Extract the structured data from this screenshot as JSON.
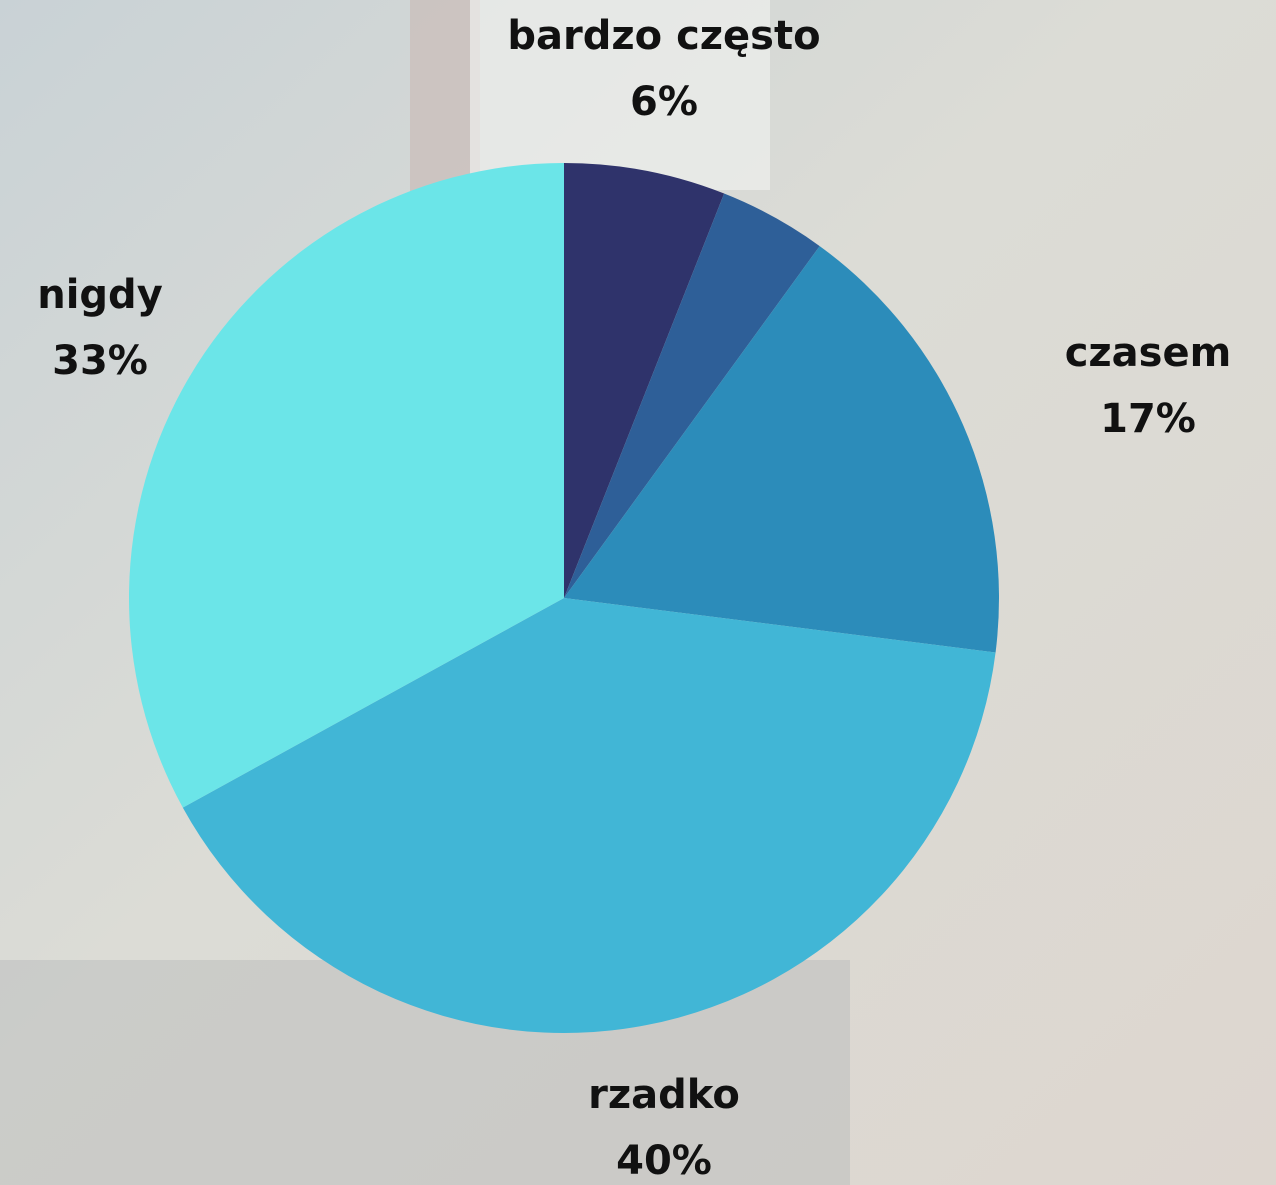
{
  "chart_data": {
    "type": "pie",
    "categories": [
      "bardzo często",
      null,
      "czasem",
      "rzadko",
      "nigdy"
    ],
    "values": [
      6,
      4,
      17,
      40,
      33
    ],
    "value_labels": [
      "6%",
      null,
      "17%",
      "40%",
      "33%"
    ],
    "colors": [
      "#2f336b",
      "#2e5f98",
      "#2c8cba",
      "#41b6d6",
      "#6be5e8"
    ]
  }
}
